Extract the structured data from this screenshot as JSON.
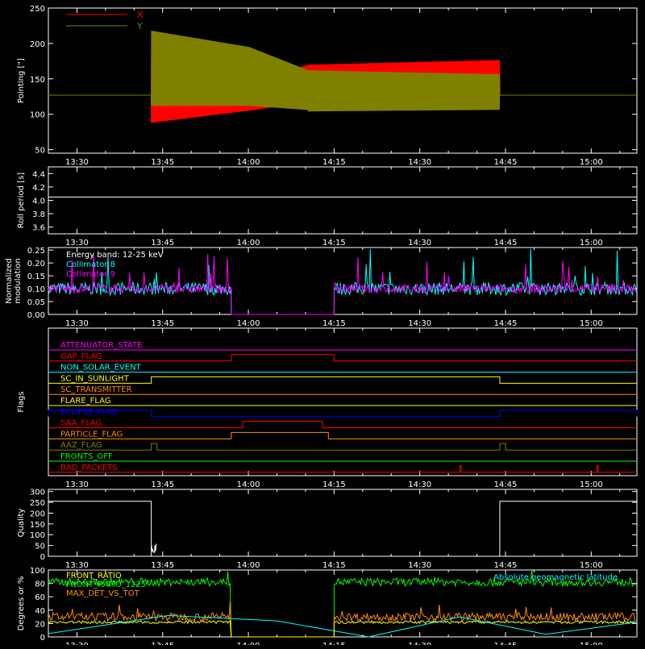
{
  "time_ticks": [
    "13:30",
    "13:45",
    "14:00",
    "14:15",
    "14:30",
    "14:45",
    "15:00"
  ],
  "colors": {
    "background": "#000000",
    "axis": "#ffffff",
    "x_series": "#ff0000",
    "y_series": "#808000",
    "cyan": "#00ffff",
    "magenta": "#ff00ff",
    "green": "#00ff00",
    "orange": "#ff8c00",
    "yellow": "#ffff00",
    "blue": "#0000ff"
  },
  "chart_data": [
    {
      "id": "pointing",
      "type": "line",
      "ylabel": "Pointing [\"]",
      "ylim": [
        45,
        250
      ],
      "yticks": [
        50,
        100,
        150,
        200,
        250
      ],
      "legend": [
        {
          "name": "X",
          "color": "#ff0000"
        },
        {
          "name": "Y",
          "color": "#808000"
        }
      ],
      "series": [
        {
          "name": "X",
          "baseline": 127,
          "active_start": "13:43",
          "active_end": "14:44",
          "envelope_min": [
            [
              "13:43",
              88,
              175
            ],
            [
              "14:00",
              105,
              145
            ],
            [
              "14:10",
              120,
              170
            ],
            [
              "14:30",
              115,
              177
            ],
            [
              "14:44",
              115,
              177
            ]
          ]
        },
        {
          "name": "Y",
          "baseline": 127,
          "active_start": "13:43",
          "active_end": "14:44",
          "envelope_min": [
            [
              "13:43",
              110,
              218
            ],
            [
              "14:00",
              112,
              195
            ],
            [
              "14:10",
              108,
              162
            ],
            [
              "14:30",
              102,
              158
            ],
            [
              "14:44",
              105,
              156
            ]
          ]
        }
      ]
    },
    {
      "id": "roll",
      "type": "line",
      "ylabel": "Roll period [s]",
      "ylim": [
        3.5,
        4.5
      ],
      "yticks": [
        3.6,
        3.8,
        4.0,
        4.2,
        4.4
      ],
      "series": [
        {
          "name": "Roll period",
          "constant": 4.05
        }
      ]
    },
    {
      "id": "modulation",
      "type": "line",
      "ylabel": "Normalized modulation",
      "ylim": [
        0,
        0.26
      ],
      "yticks": [
        0.0,
        0.05,
        0.1,
        0.15,
        0.2,
        0.25
      ],
      "annotation": "Energy band: 12-25 keV",
      "legend": [
        {
          "name": "Collimator 8",
          "color": "#00ffff"
        },
        {
          "name": "Collimator 9",
          "color": "#ff00ff"
        }
      ],
      "gaps": [
        [
          "13:57",
          "14:15"
        ]
      ],
      "typical_value": 0.1
    },
    {
      "id": "flags",
      "type": "line",
      "ylabel": "Flags",
      "flags": [
        {
          "name": "ATTENUATOR_STATE",
          "color": "#ff00ff",
          "high": []
        },
        {
          "name": "GAP_FLAG",
          "color": "#ff0000",
          "high": [
            [
              "13:57",
              "14:15"
            ]
          ]
        },
        {
          "name": "NON_SOLAR_EVENT",
          "color": "#00ffff",
          "high": []
        },
        {
          "name": "SC_IN_SUNLIGHT",
          "color": "#ffff00",
          "high": [
            [
              "13:43",
              "14:44"
            ]
          ]
        },
        {
          "name": "SC_TRANSMITTER",
          "color": "#ff8c00",
          "high": []
        },
        {
          "name": "FLARE_FLAG",
          "color": "#ffff00",
          "high": []
        },
        {
          "name": "ECLIPSE_FLAG",
          "color": "#0000ff",
          "high": [
            [
              "13:25",
              "13:43"
            ],
            [
              "14:44",
              "15:08"
            ]
          ]
        },
        {
          "name": "SAA_FLAG",
          "color": "#ff0000",
          "high": [
            [
              "13:59",
              "14:13"
            ]
          ]
        },
        {
          "name": "PARTICLE_FLAG",
          "color": "#ff8c00",
          "high": [
            [
              "13:57",
              "14:14"
            ]
          ]
        },
        {
          "name": "AAZ_FLAG",
          "color": "#808000",
          "high": [
            [
              "13:43",
              "13:44"
            ],
            [
              "14:44",
              "14:45"
            ]
          ]
        },
        {
          "name": "FRONTS_OFF",
          "color": "#00ff00",
          "high": []
        },
        {
          "name": "BAD_PACKETS",
          "color": "#ff0000",
          "high": [
            [
              "14:37",
              "14:37"
            ],
            [
              "15:01",
              "15:01"
            ]
          ]
        }
      ]
    },
    {
      "id": "quality",
      "type": "line",
      "ylabel": "Quality",
      "ylim": [
        0,
        310
      ],
      "yticks": [
        0,
        50,
        100,
        150,
        200,
        250,
        300
      ],
      "series": [
        {
          "name": "Quality",
          "points": [
            [
              "13:25",
              255
            ],
            [
              "13:43",
              255
            ],
            [
              "13:43",
              0
            ],
            [
              "14:44",
              0
            ],
            [
              "14:44",
              255
            ],
            [
              "15:08",
              255
            ]
          ]
        }
      ]
    },
    {
      "id": "ratios",
      "type": "line",
      "ylabel": "Degrees or %",
      "ylim": [
        0,
        100
      ],
      "yticks": [
        0,
        20,
        40,
        60,
        80,
        100
      ],
      "legend_left": [
        {
          "name": "FRONT_RATIO",
          "color": "#ffff00"
        },
        {
          "name": "FRONT_RATIO_1225",
          "color": "#00ff00"
        },
        {
          "name": "MAX_DET_VS_TOT",
          "color": "#ff8c00"
        }
      ],
      "legend_right": [
        {
          "name": "Absolute geomagnetic latitude",
          "color": "#00ffff"
        }
      ],
      "gaps": [
        [
          "13:57",
          "14:15"
        ]
      ],
      "front_ratio_1225_level": 82,
      "max_det_level": 30,
      "front_ratio_level": 22,
      "latitude": [
        [
          "13:25",
          5
        ],
        [
          "13:46",
          32
        ],
        [
          "14:05",
          24
        ],
        [
          "14:21",
          0
        ],
        [
          "14:37",
          30
        ],
        [
          "14:52",
          4
        ],
        [
          "15:08",
          22
        ]
      ]
    }
  ]
}
